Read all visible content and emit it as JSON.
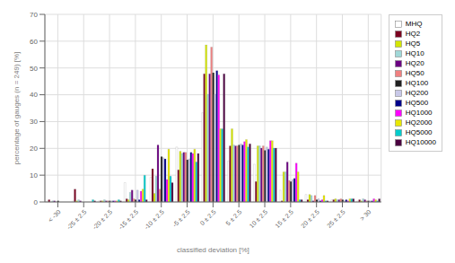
{
  "chart_data": {
    "type": "bar",
    "xlabel": "classified deviation [%]",
    "ylabel": "percentage of gauges (n = 249) [%]",
    "categories": [
      "< -30",
      "-25 ± 2.5",
      "-20 ± 2.5",
      "-15 ± 2.5",
      "-10 ± 2.5",
      "-5 ± 2.5",
      "0 ± 2.5",
      "5 ± 2.5",
      "10 ± 2.5",
      "15 ± 2.5",
      "20 ± 2.5",
      "25 ± 2.5",
      "> 30"
    ],
    "series": [
      {
        "name": "MHQ",
        "color": "#ffffff",
        "values": [
          0.4,
          0.4,
          0.4,
          7.2,
          9.2,
          20.5,
          33.3,
          15.3,
          14.1,
          4.4,
          2.8,
          0.8,
          0.4
        ]
      },
      {
        "name": "HQ2",
        "color": "#7b0020",
        "values": [
          0.8,
          4.8,
          0.4,
          1.2,
          12.4,
          12.0,
          47.8,
          20.9,
          7.6,
          0.4,
          0.8,
          0.8,
          0.8
        ]
      },
      {
        "name": "HQ5",
        "color": "#d4e600",
        "values": [
          0.0,
          0.4,
          0.4,
          0.8,
          3.2,
          18.9,
          58.6,
          27.3,
          20.9,
          11.2,
          2.8,
          1.2,
          0.4
        ]
      },
      {
        "name": "HQ10",
        "color": "#a0d8d8",
        "values": [
          0.4,
          0.8,
          0.8,
          3.6,
          9.6,
          18.1,
          40.2,
          21.3,
          20.9,
          11.2,
          2.4,
          0.8,
          1.2
        ]
      },
      {
        "name": "HQ20",
        "color": "#6b0082",
        "values": [
          0.4,
          0.4,
          0.4,
          4.4,
          21.3,
          18.5,
          47.8,
          20.9,
          20.1,
          14.9,
          0.4,
          0.8,
          0.8
        ]
      },
      {
        "name": "HQ50",
        "color": "#f08080",
        "values": [
          0.0,
          0.0,
          0.4,
          1.2,
          4.8,
          18.5,
          57.8,
          20.9,
          20.9,
          8.0,
          2.4,
          1.2,
          0.4
        ]
      },
      {
        "name": "HQ100",
        "color": "#202020",
        "values": [
          0.4,
          0.0,
          0.4,
          0.8,
          16.9,
          15.7,
          48.2,
          21.3,
          19.3,
          7.6,
          0.8,
          0.8,
          0.4
        ]
      },
      {
        "name": "HQ200",
        "color": "#c8c8e8",
        "values": [
          0.0,
          0.0,
          0.4,
          4.4,
          16.5,
          16.1,
          40.2,
          21.7,
          20.5,
          8.4,
          1.2,
          0.4,
          0.4
        ]
      },
      {
        "name": "HQ500",
        "color": "#00008b",
        "values": [
          0.0,
          0.0,
          0.4,
          0.8,
          16.1,
          18.5,
          49.0,
          21.3,
          19.7,
          8.8,
          0.4,
          0.8,
          0.4
        ]
      },
      {
        "name": "HQ1000",
        "color": "#ff00ff",
        "values": [
          0.0,
          0.0,
          0.4,
          4.0,
          8.4,
          18.1,
          47.4,
          22.5,
          22.9,
          14.5,
          0.8,
          0.4,
          1.2
        ]
      },
      {
        "name": "HQ2000",
        "color": "#e8e800",
        "values": [
          0.0,
          0.0,
          0.4,
          4.8,
          19.7,
          19.7,
          27.3,
          23.3,
          22.9,
          11.2,
          2.4,
          1.2,
          0.8
        ]
      },
      {
        "name": "HQ5000",
        "color": "#00cccc",
        "values": [
          0.0,
          0.8,
          0.8,
          10.0,
          9.6,
          14.9,
          27.3,
          20.5,
          20.1,
          0.8,
          0.4,
          1.2,
          0.4
        ]
      },
      {
        "name": "HQ10000",
        "color": "#4b0040",
        "values": [
          0.0,
          0.4,
          0.4,
          0.8,
          7.2,
          18.1,
          47.8,
          21.7,
          20.1,
          0.8,
          0.4,
          1.2,
          1.2
        ]
      }
    ],
    "ylim": [
      0,
      70
    ],
    "yticks": [
      0,
      10,
      20,
      30,
      40,
      50,
      60,
      70
    ],
    "grid": true,
    "legend": "right"
  }
}
